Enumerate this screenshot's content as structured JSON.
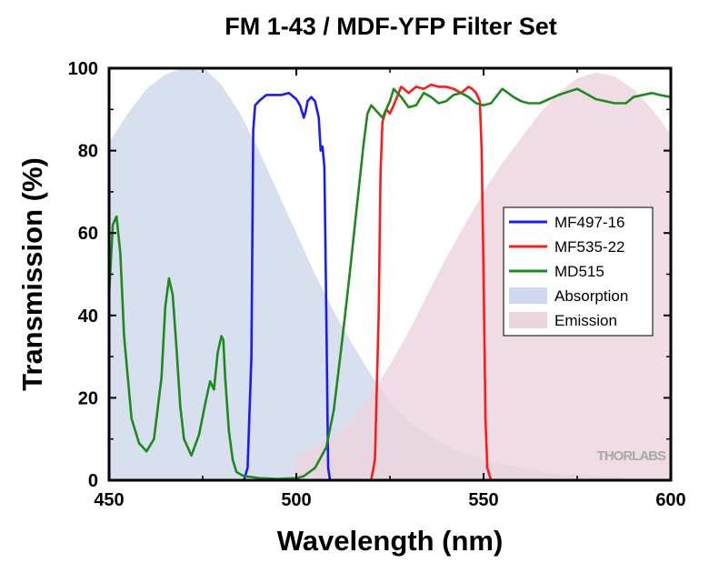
{
  "chart_data": {
    "type": "line",
    "title": "FM 1-43 / MDF-YFP Filter Set",
    "xlabel": "Wavelength (nm)",
    "ylabel": "Transmission (%)",
    "xlim": [
      450,
      600
    ],
    "ylim": [
      0,
      100
    ],
    "xticks": [
      450,
      500,
      550,
      600
    ],
    "yticks": [
      0,
      20,
      40,
      60,
      80,
      100
    ],
    "grid": false,
    "legend_position": "right-middle",
    "watermark": "THORLABS",
    "series": [
      {
        "name": "MF497-16",
        "kind": "line",
        "color": "#1a1aff",
        "x": [
          450,
          486,
          487,
          488,
          488.5,
          489,
          490,
          492,
          494,
          496,
          498,
          500,
          501,
          502,
          502.5,
          503,
          504,
          505,
          506,
          506.5,
          507,
          507.5,
          508,
          508.5,
          509,
          510,
          600
        ],
        "y": [
          0,
          0,
          3,
          30,
          85,
          91,
          92,
          93.5,
          93.5,
          93.5,
          94,
          92.5,
          91,
          88,
          89.5,
          92,
          93,
          92,
          88,
          80,
          81,
          76,
          40,
          3,
          0,
          0,
          0
        ]
      },
      {
        "name": "MF535-22",
        "kind": "line",
        "color": "#ff1a1a",
        "x": [
          450,
          520,
          521,
          522,
          522.5,
          523,
          524,
          525,
          526,
          528,
          530,
          532,
          534,
          536,
          538,
          540,
          542,
          544,
          546,
          547,
          548,
          549,
          549.5,
          550,
          550.5,
          551,
          552,
          600
        ],
        "y": [
          0,
          0,
          5,
          40,
          75,
          87,
          90,
          89,
          91,
          95.5,
          94,
          95.5,
          95,
          96,
          95.5,
          95.5,
          95,
          94,
          95.5,
          95,
          94,
          92,
          80,
          50,
          15,
          3,
          0,
          0
        ]
      },
      {
        "name": "MD515",
        "kind": "line",
        "color": "#1e8a1e",
        "x": [
          450,
          451,
          452,
          453,
          454,
          456,
          458,
          460,
          462,
          464,
          465,
          466,
          467,
          468,
          469,
          470,
          472,
          474,
          476,
          477,
          478,
          479,
          480,
          480.5,
          481,
          482,
          483,
          484,
          485,
          486,
          488,
          490,
          495,
          500,
          502,
          505,
          508,
          510,
          512,
          514,
          516,
          518,
          519,
          520,
          521,
          522,
          523,
          524,
          525,
          526,
          528,
          530,
          532,
          534,
          536,
          538,
          540,
          542,
          544,
          546,
          548,
          550,
          552,
          555,
          558,
          560,
          562,
          565,
          570,
          575,
          580,
          585,
          588,
          590,
          595,
          597,
          600
        ],
        "y": [
          45,
          62,
          64,
          55,
          35,
          15,
          9,
          7,
          10,
          25,
          42,
          49,
          45,
          32,
          18,
          10,
          6,
          11,
          20,
          24,
          22,
          31,
          35,
          34,
          25,
          12,
          5,
          2,
          1.5,
          1,
          0.8,
          0.5,
          0.3,
          0.5,
          1,
          3,
          8,
          17,
          32,
          48,
          65,
          82,
          89,
          91,
          90,
          89,
          88,
          90,
          92,
          95,
          93,
          90.5,
          91,
          94,
          93,
          91.5,
          92,
          93.5,
          94,
          93,
          91.5,
          91,
          91.5,
          95,
          93,
          92,
          91.5,
          91.5,
          93.5,
          95,
          92.5,
          91.5,
          91.5,
          93,
          94,
          93.5,
          93
        ]
      },
      {
        "name": "Absorption",
        "kind": "area",
        "color": "#cfd8ec",
        "x": [
          450,
          455,
          460,
          465,
          470,
          473,
          476,
          480,
          485,
          490,
          495,
          500,
          505,
          510,
          515,
          520,
          525,
          530,
          535,
          540,
          545,
          550,
          560,
          570,
          580,
          590,
          600
        ],
        "y": [
          82,
          89,
          95,
          98.5,
          100,
          100,
          99.5,
          96,
          89,
          80,
          70,
          60,
          50,
          41,
          33,
          25.5,
          19,
          14,
          11,
          8.5,
          6.5,
          5,
          3,
          1.5,
          1,
          0.5,
          0.3
        ]
      },
      {
        "name": "Emission",
        "kind": "area",
        "color": "#ecd4de",
        "x": [
          500,
          505,
          510,
          515,
          520,
          525,
          530,
          535,
          540,
          545,
          550,
          555,
          560,
          565,
          570,
          575,
          580,
          585,
          590,
          595,
          600
        ],
        "y": [
          6,
          8,
          11,
          15,
          21,
          28,
          36,
          45,
          54,
          62,
          70,
          77,
          83,
          89,
          94,
          97.5,
          99,
          98,
          95,
          90,
          84
        ]
      }
    ]
  }
}
